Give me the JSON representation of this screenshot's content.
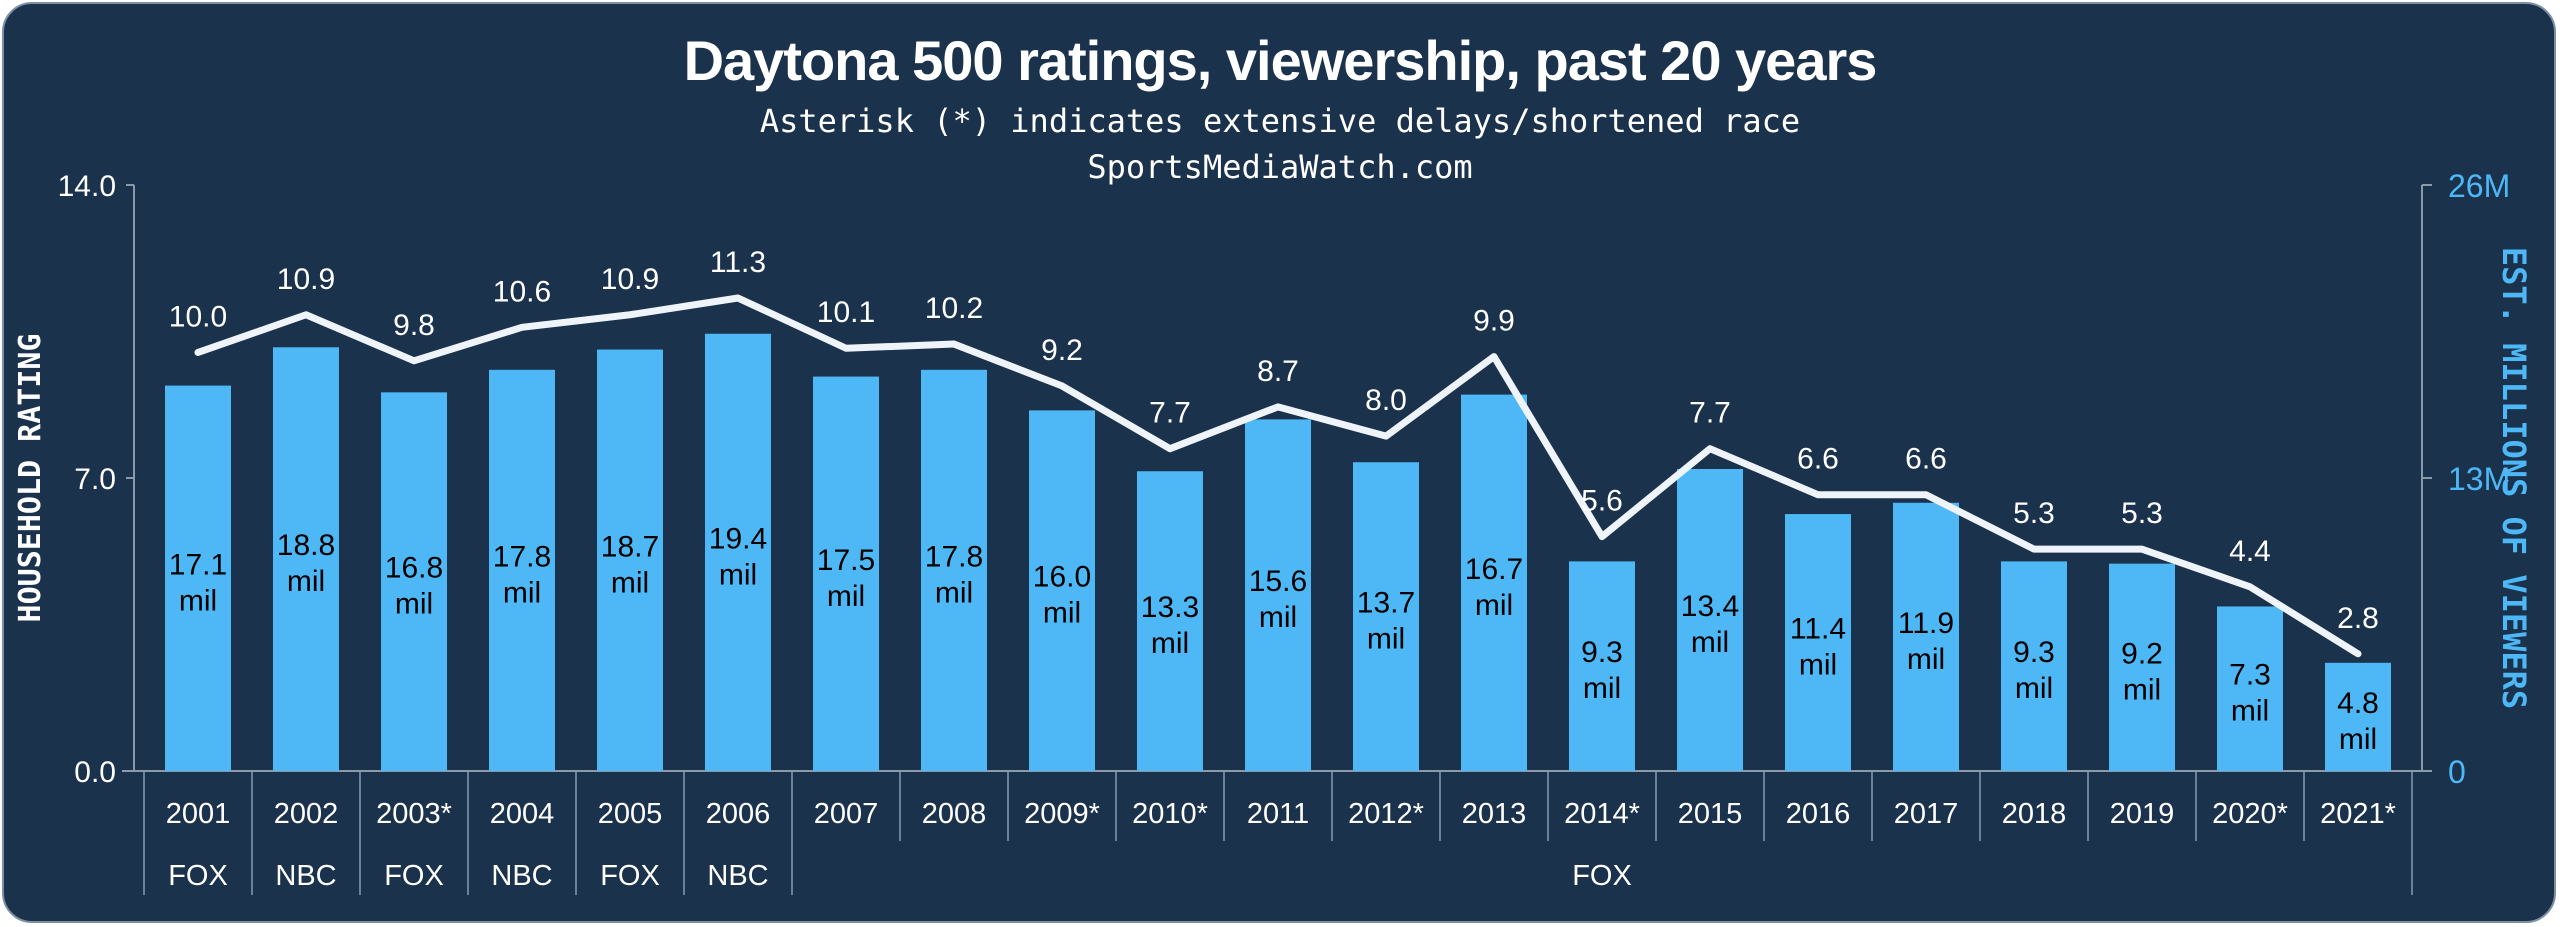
{
  "colors": {
    "background": "#1b324d",
    "bar": "#4db8f5",
    "line": "#eef4fa",
    "right_axis": "#4db8f5",
    "text": "#ffffff"
  },
  "chart_data": {
    "type": "bar+line",
    "title": "Daytona 500 ratings, viewership, past 20 years",
    "subtitle": "Asterisk (*) indicates extensive delays/shortened race",
    "source": "SportsMediaWatch.com",
    "ylabel_left": "HOUSEHOLD RATING",
    "ylabel_right": "EST. MILLIONS OF VIEWERS",
    "ylim_left": [
      0,
      14
    ],
    "ylim_right": [
      0,
      26
    ],
    "left_ticks": [
      "0.0",
      "7.0",
      "14.0"
    ],
    "right_ticks": [
      "0",
      "13M",
      "26M"
    ],
    "categories": [
      "2001",
      "2002",
      "2003*",
      "2004",
      "2005",
      "2006",
      "2007",
      "2008",
      "2009*",
      "2010*",
      "2011",
      "2012*",
      "2013",
      "2014*",
      "2015",
      "2016",
      "2017",
      "2018",
      "2019",
      "2020*",
      "2021*"
    ],
    "networks": [
      {
        "label": "FOX",
        "span": 1
      },
      {
        "label": "NBC",
        "span": 1
      },
      {
        "label": "FOX",
        "span": 1
      },
      {
        "label": "NBC",
        "span": 1
      },
      {
        "label": "FOX",
        "span": 1
      },
      {
        "label": "NBC",
        "span": 1
      },
      {
        "label": "FOX",
        "span": 15
      }
    ],
    "series": [
      {
        "name": "HOUSEHOLD RATING",
        "type": "line",
        "axis": "left",
        "values": [
          10.0,
          10.9,
          9.8,
          10.6,
          10.9,
          11.3,
          10.1,
          10.2,
          9.2,
          7.7,
          8.7,
          8.0,
          9.9,
          5.6,
          7.7,
          6.6,
          6.6,
          5.3,
          5.3,
          4.4,
          2.8
        ],
        "labels": [
          "10.0",
          "10.9",
          "9.8",
          "10.6",
          "10.9",
          "11.3",
          "10.1",
          "10.2",
          "9.2",
          "7.7",
          "8.7",
          "8.0",
          "9.9",
          "5.6",
          "7.7",
          "6.6",
          "6.6",
          "5.3",
          "5.3",
          "4.4",
          "2.8"
        ]
      },
      {
        "name": "EST. MILLIONS OF VIEWERS",
        "type": "bar",
        "axis": "right",
        "values": [
          17.1,
          18.8,
          16.8,
          17.8,
          18.7,
          19.4,
          17.5,
          17.8,
          16.0,
          13.3,
          15.6,
          13.7,
          16.7,
          9.3,
          13.4,
          11.4,
          11.9,
          9.3,
          9.2,
          7.3,
          4.8
        ],
        "labels": [
          "17.1",
          "18.8",
          "16.8",
          "17.8",
          "18.7",
          "19.4",
          "17.5",
          "17.8",
          "16.0",
          "13.3",
          "15.6",
          "13.7",
          "16.7",
          "9.3",
          "13.4",
          "11.4",
          "11.9",
          "9.3",
          "9.2",
          "7.3",
          "4.8"
        ],
        "unit_label": "mil"
      }
    ],
    "grid": false
  }
}
